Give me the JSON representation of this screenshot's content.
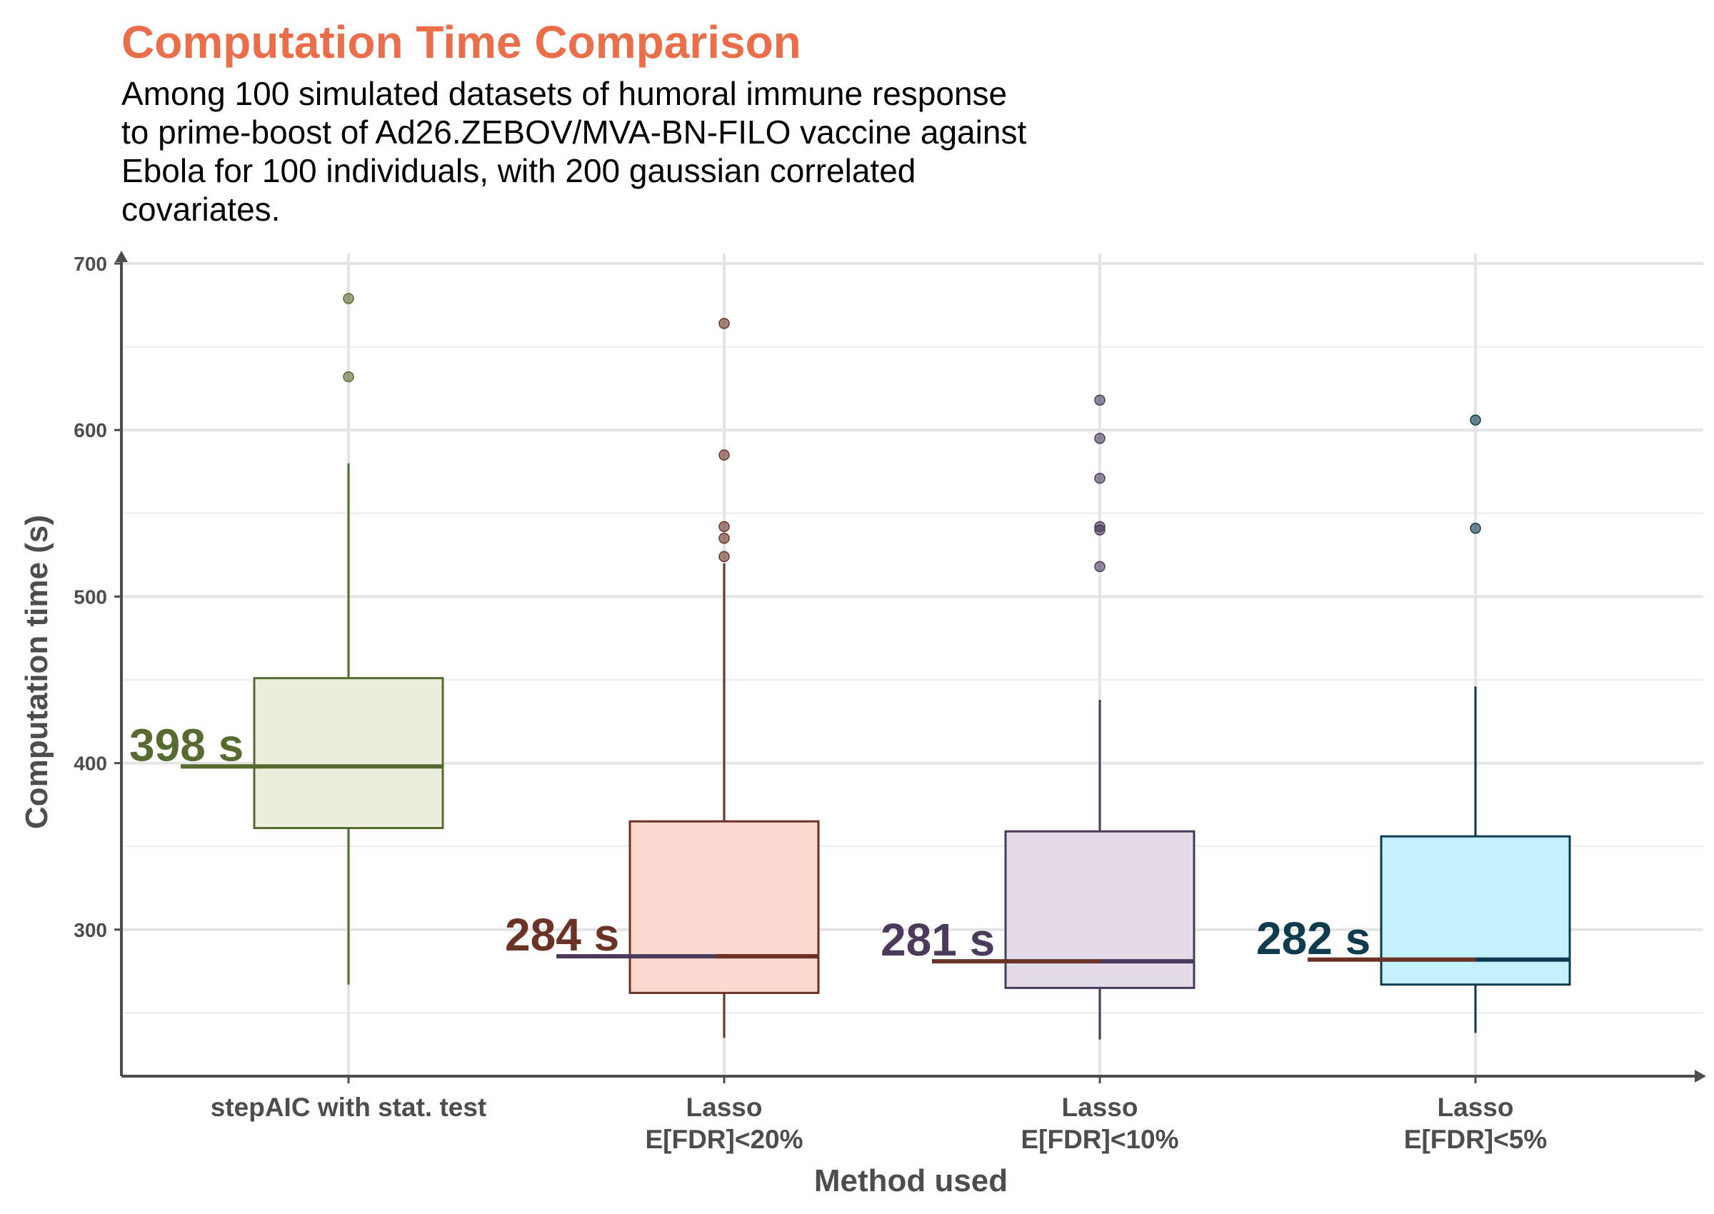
{
  "chart_data": {
    "type": "boxplot",
    "title": "Computation Time Comparison",
    "subtitle_lines": [
      "Among 100 simulated datasets of humoral immune response",
      "to prime-boost of Ad26.ZEBOV/MVA-BN-FILO vaccine against",
      "Ebola for 100 individuals, with 200 gaussian correlated",
      "covariates."
    ],
    "xlabel": "Method used",
    "ylabel": "Computation time (s)",
    "ylim": [
      212,
      706
    ],
    "yticks": [
      300,
      400,
      500,
      600,
      700
    ],
    "grid": true,
    "categories": [
      {
        "label_lines": [
          "stepAIC with stat. test"
        ],
        "median_label": "398 s",
        "color": "#556B2F",
        "fill": "#ECEFDC",
        "median": 398,
        "q1": 361,
        "q3": 451,
        "whisker_low": 267,
        "whisker_high": 580,
        "outliers": [
          679,
          632
        ]
      },
      {
        "label_lines": [
          "Lasso",
          "E[FDR]<20%"
        ],
        "median_label": "284 s",
        "color": "#6B3226",
        "fill": "#F9D8CE",
        "median": 284,
        "q1": 262,
        "q3": 365,
        "whisker_low": 235,
        "whisker_high": 520,
        "outliers": [
          664,
          585,
          542,
          535,
          524
        ]
      },
      {
        "label_lines": [
          "Lasso",
          "E[FDR]<10%"
        ],
        "median_label": "281 s",
        "color": "#4B3A5C",
        "fill": "#E3DBE8",
        "median": 281,
        "q1": 265,
        "q3": 359,
        "whisker_low": 234,
        "whisker_high": 438,
        "outliers": [
          618,
          595,
          571,
          542,
          540,
          518
        ]
      },
      {
        "label_lines": [
          "Lasso",
          "E[FDR]<5%"
        ],
        "median_label": "282 s",
        "color": "#0E3B4D",
        "fill": "#C4EFFC",
        "median": 282,
        "q1": 267,
        "q3": 356,
        "whisker_low": 238,
        "whisker_high": 446,
        "outliers": [
          606,
          541
        ]
      }
    ]
  }
}
